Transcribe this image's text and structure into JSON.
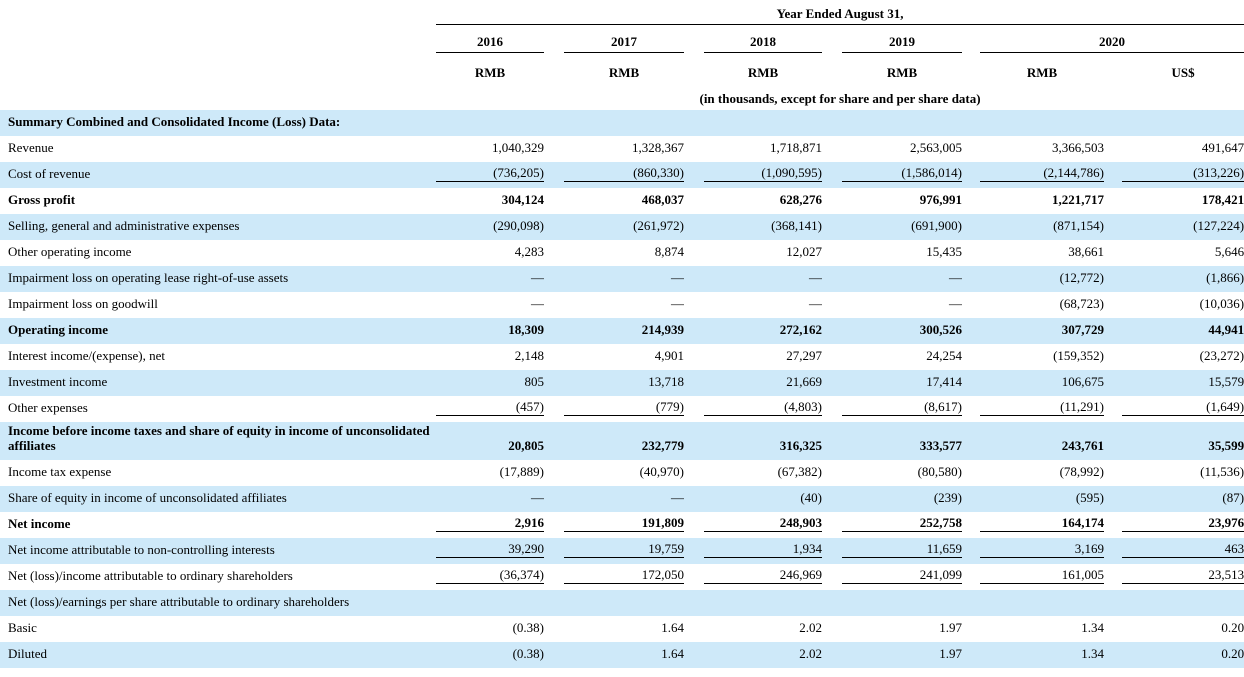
{
  "colors": {
    "stripe_blue": "#cee9f9",
    "rule_black": "#000000"
  },
  "header": {
    "span_title": "Year Ended August 31,",
    "years": [
      "2016",
      "2017",
      "2018",
      "2019",
      "2020"
    ],
    "units": [
      "RMB",
      "RMB",
      "RMB",
      "RMB",
      "RMB",
      "US$"
    ],
    "note": "(in thousands, except for share and per share data)"
  },
  "table": {
    "rows": [
      {
        "label": "Summary Combined and Consolidated Income (Loss) Data:",
        "values": null,
        "bold": true,
        "underline": false,
        "stripe": true,
        "tall": false
      },
      {
        "label": "Revenue",
        "values": [
          "1,040,329",
          "1,328,367",
          "1,718,871",
          "2,563,005",
          "3,366,503",
          "491,647"
        ],
        "bold": false,
        "underline": false,
        "stripe": false,
        "tall": false
      },
      {
        "label": "Cost of revenue",
        "values": [
          "(736,205)",
          "(860,330)",
          "(1,090,595)",
          "(1,586,014)",
          "(2,144,786)",
          "(313,226)"
        ],
        "bold": false,
        "underline": true,
        "stripe": true,
        "tall": false
      },
      {
        "label": "Gross profit",
        "values": [
          "304,124",
          "468,037",
          "628,276",
          "976,991",
          "1,221,717",
          "178,421"
        ],
        "bold": true,
        "underline": false,
        "stripe": false,
        "tall": false
      },
      {
        "label": "Selling, general and administrative expenses",
        "values": [
          "(290,098)",
          "(261,972)",
          "(368,141)",
          "(691,900)",
          "(871,154)",
          "(127,224)"
        ],
        "bold": false,
        "underline": false,
        "stripe": true,
        "tall": false
      },
      {
        "label": "Other operating income",
        "values": [
          "4,283",
          "8,874",
          "12,027",
          "15,435",
          "38,661",
          "5,646"
        ],
        "bold": false,
        "underline": false,
        "stripe": false,
        "tall": false
      },
      {
        "label": "Impairment loss on operating lease right-of-use assets",
        "values": [
          "—",
          "—",
          "—",
          "—",
          "(12,772)",
          "(1,866)"
        ],
        "bold": false,
        "underline": false,
        "stripe": true,
        "tall": false
      },
      {
        "label": "Impairment loss on goodwill",
        "values": [
          "—",
          "—",
          "—",
          "—",
          "(68,723)",
          "(10,036)"
        ],
        "bold": false,
        "underline": false,
        "stripe": false,
        "tall": false
      },
      {
        "label": "Operating income",
        "values": [
          "18,309",
          "214,939",
          "272,162",
          "300,526",
          "307,729",
          "44,941"
        ],
        "bold": true,
        "underline": false,
        "stripe": true,
        "tall": false
      },
      {
        "label": "Interest income/(expense), net",
        "values": [
          "2,148",
          "4,901",
          "27,297",
          "24,254",
          "(159,352)",
          "(23,272)"
        ],
        "bold": false,
        "underline": false,
        "stripe": false,
        "tall": false
      },
      {
        "label": "Investment income",
        "values": [
          "805",
          "13,718",
          "21,669",
          "17,414",
          "106,675",
          "15,579"
        ],
        "bold": false,
        "underline": false,
        "stripe": true,
        "tall": false
      },
      {
        "label": "Other expenses",
        "values": [
          "(457)",
          "(779)",
          "(4,803)",
          "(8,617)",
          "(11,291)",
          "(1,649)"
        ],
        "bold": false,
        "underline": true,
        "stripe": false,
        "tall": false
      },
      {
        "label": "Income before income taxes and share of equity in income of unconsolidated affiliates",
        "values": [
          "20,805",
          "232,779",
          "316,325",
          "333,577",
          "243,761",
          "35,599"
        ],
        "bold": true,
        "underline": false,
        "stripe": true,
        "tall": true
      },
      {
        "label": "Income tax expense",
        "values": [
          "(17,889)",
          "(40,970)",
          "(67,382)",
          "(80,580)",
          "(78,992)",
          "(11,536)"
        ],
        "bold": false,
        "underline": false,
        "stripe": false,
        "tall": false
      },
      {
        "label": "Share of equity in income of unconsolidated affiliates",
        "values": [
          "—",
          "—",
          "(40)",
          "(239)",
          "(595)",
          "(87)"
        ],
        "bold": false,
        "underline": false,
        "stripe": true,
        "tall": false
      },
      {
        "label": "Net income",
        "values": [
          "2,916",
          "191,809",
          "248,903",
          "252,758",
          "164,174",
          "23,976"
        ],
        "bold": true,
        "underline": true,
        "stripe": false,
        "tall": false
      },
      {
        "label": "Net income attributable to non-controlling interests",
        "values": [
          "39,290",
          "19,759",
          "1,934",
          "11,659",
          "3,169",
          "463"
        ],
        "bold": false,
        "underline": true,
        "stripe": true,
        "tall": false
      },
      {
        "label": "Net (loss)/income attributable to ordinary shareholders",
        "values": [
          "(36,374)",
          "172,050",
          "246,969",
          "241,099",
          "161,005",
          "23,513"
        ],
        "bold": false,
        "underline": true,
        "stripe": false,
        "tall": false
      },
      {
        "label": "Net (loss)/earnings per share attributable to ordinary shareholders",
        "values": null,
        "bold": false,
        "underline": false,
        "stripe": true,
        "tall": false
      },
      {
        "label": "Basic",
        "values": [
          "(0.38)",
          "1.64",
          "2.02",
          "1.97",
          "1.34",
          "0.20"
        ],
        "bold": false,
        "underline": false,
        "stripe": false,
        "tall": false
      },
      {
        "label": "Diluted",
        "values": [
          "(0.38)",
          "1.64",
          "2.02",
          "1.97",
          "1.34",
          "0.20"
        ],
        "bold": false,
        "underline": false,
        "stripe": true,
        "tall": false
      }
    ]
  }
}
